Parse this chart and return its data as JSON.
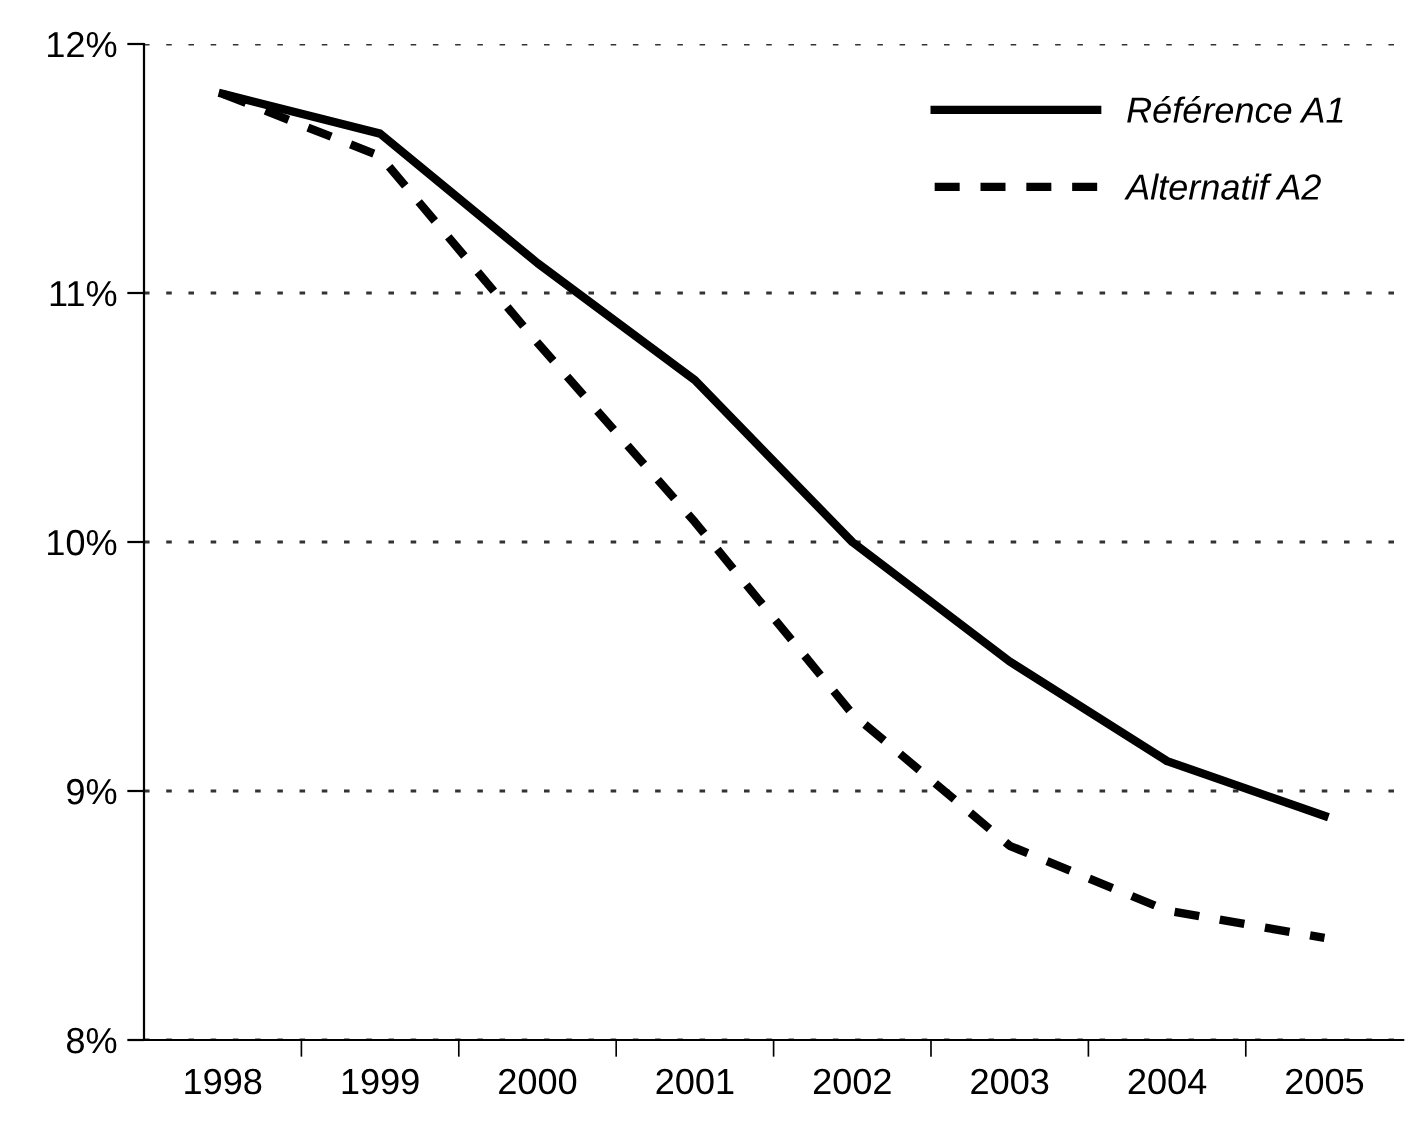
{
  "chart_data": {
    "type": "line",
    "categories": [
      "1998",
      "1999",
      "2000",
      "2001",
      "2002",
      "2003",
      "2004",
      "2005"
    ],
    "series": [
      {
        "name": "Référence A1",
        "color": "#000000",
        "line_style": "solid",
        "values": [
          11.8,
          11.64,
          11.12,
          10.65,
          10.0,
          9.52,
          9.12,
          8.9
        ]
      },
      {
        "name": "Alternatif A2",
        "color": "#000000",
        "line_style": "dashed",
        "values": [
          11.8,
          11.55,
          10.8,
          10.08,
          9.31,
          8.78,
          8.52,
          8.41
        ]
      }
    ],
    "ylim": [
      8,
      12
    ],
    "yticks": [
      {
        "value": 8,
        "label": "8%"
      },
      {
        "value": 9,
        "label": "9%"
      },
      {
        "value": 10,
        "label": "10%"
      },
      {
        "value": 11,
        "label": "11%"
      },
      {
        "value": 12,
        "label": "12%"
      }
    ],
    "grid": "y",
    "legend": "top right",
    "marker": "none"
  }
}
